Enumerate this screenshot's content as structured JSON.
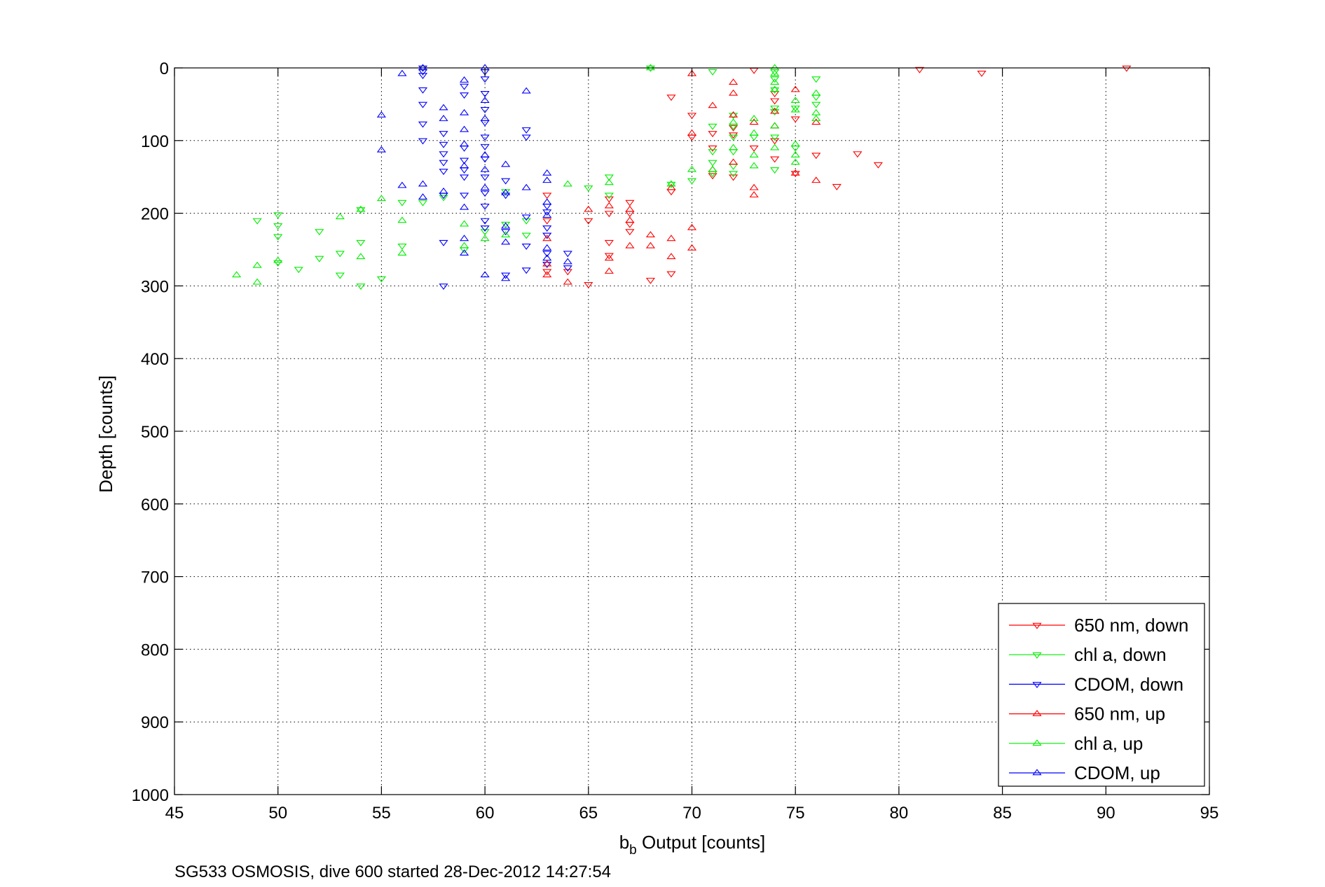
{
  "chart_data": {
    "type": "scatter",
    "title": "",
    "xlabel": "b",
    "xlabel_subscript": "b",
    "xlabel_rest": " Output [counts]",
    "ylabel": "Depth [counts]",
    "xlim": [
      45,
      95
    ],
    "ylim": [
      0,
      1000
    ],
    "y_inverted": true,
    "x_ticks": [
      45,
      50,
      55,
      60,
      65,
      70,
      75,
      80,
      85,
      90,
      95
    ],
    "y_ticks": [
      0,
      100,
      200,
      300,
      400,
      500,
      600,
      700,
      800,
      900,
      1000
    ],
    "grid": true,
    "legend_position": "bottom-right",
    "footer": "SG533 OSMOSIS, dive 600 started 28-Dec-2012 14:27:54",
    "series": [
      {
        "name": "650 nm, down",
        "color": "#ff0000",
        "marker": "triangle-down",
        "points": [
          [
            91,
            0
          ],
          [
            84,
            7
          ],
          [
            81,
            2
          ],
          [
            73,
            3
          ],
          [
            74,
            35
          ],
          [
            74,
            45
          ],
          [
            75,
            70
          ],
          [
            74,
            100
          ],
          [
            73,
            110
          ],
          [
            74,
            125
          ],
          [
            75,
            145
          ],
          [
            76,
            120
          ],
          [
            78,
            118
          ],
          [
            79,
            133
          ],
          [
            77,
            163
          ],
          [
            72,
            82
          ],
          [
            72,
            92
          ],
          [
            72,
            150
          ],
          [
            71,
            90
          ],
          [
            70,
            95
          ],
          [
            70,
            65
          ],
          [
            69,
            40
          ],
          [
            69,
            170
          ],
          [
            69,
            283
          ],
          [
            68,
            292
          ],
          [
            67,
            185
          ],
          [
            67,
            200
          ],
          [
            67,
            215
          ],
          [
            67,
            225
          ],
          [
            66,
            180
          ],
          [
            66,
            200
          ],
          [
            66,
            240
          ],
          [
            66,
            258
          ],
          [
            65,
            210
          ],
          [
            65,
            298
          ],
          [
            64,
            280
          ],
          [
            63,
            175
          ],
          [
            63,
            210
          ],
          [
            63,
            230
          ],
          [
            63,
            280
          ],
          [
            71,
            148
          ],
          [
            71,
            110
          ]
        ]
      },
      {
        "name": "chl a, down",
        "color": "#00ee00",
        "marker": "triangle-down",
        "points": [
          [
            68,
            0
          ],
          [
            71,
            5
          ],
          [
            74,
            5
          ],
          [
            74,
            15
          ],
          [
            74,
            30
          ],
          [
            74,
            55
          ],
          [
            76,
            15
          ],
          [
            76,
            40
          ],
          [
            76,
            50
          ],
          [
            75,
            55
          ],
          [
            75,
            110
          ],
          [
            74,
            60
          ],
          [
            74,
            95
          ],
          [
            74,
            140
          ],
          [
            73,
            95
          ],
          [
            72,
            65
          ],
          [
            72,
            80
          ],
          [
            72,
            95
          ],
          [
            72,
            115
          ],
          [
            72,
            135
          ],
          [
            72,
            145
          ],
          [
            71,
            115
          ],
          [
            71,
            130
          ],
          [
            71,
            145
          ],
          [
            71,
            80
          ],
          [
            70,
            155
          ],
          [
            69,
            160
          ],
          [
            66,
            150
          ],
          [
            66,
            175
          ],
          [
            65,
            165
          ],
          [
            62,
            210
          ],
          [
            62,
            230
          ],
          [
            61,
            170
          ],
          [
            61,
            215
          ],
          [
            60,
            225
          ],
          [
            59,
            250
          ],
          [
            58,
            178
          ],
          [
            57,
            185
          ],
          [
            56,
            185
          ],
          [
            56,
            245
          ],
          [
            55,
            290
          ],
          [
            54,
            195
          ],
          [
            54,
            240
          ],
          [
            54,
            300
          ],
          [
            53,
            255
          ],
          [
            53,
            285
          ],
          [
            52,
            225
          ],
          [
            52,
            262
          ],
          [
            51,
            277
          ],
          [
            50,
            202
          ],
          [
            50,
            217
          ],
          [
            50,
            232
          ],
          [
            50,
            268
          ],
          [
            49,
            210
          ]
        ]
      },
      {
        "name": "CDOM, down",
        "color": "#0000ff",
        "marker": "triangle-down",
        "points": [
          [
            57,
            0
          ],
          [
            57,
            5
          ],
          [
            57,
            10
          ],
          [
            57,
            30
          ],
          [
            57,
            50
          ],
          [
            57,
            77
          ],
          [
            57,
            100
          ],
          [
            59,
            25
          ],
          [
            59,
            37
          ],
          [
            59,
            110
          ],
          [
            59,
            127
          ],
          [
            59,
            140
          ],
          [
            59,
            150
          ],
          [
            58,
            90
          ],
          [
            58,
            105
          ],
          [
            58,
            118
          ],
          [
            58,
            130
          ],
          [
            58,
            142
          ],
          [
            58,
            175
          ],
          [
            58,
            240
          ],
          [
            58,
            300
          ],
          [
            60,
            5
          ],
          [
            60,
            15
          ],
          [
            60,
            35
          ],
          [
            60,
            57
          ],
          [
            60,
            75
          ],
          [
            60,
            95
          ],
          [
            60,
            108
          ],
          [
            60,
            125
          ],
          [
            60,
            150
          ],
          [
            60,
            172
          ],
          [
            60,
            190
          ],
          [
            60,
            210
          ],
          [
            60,
            220
          ],
          [
            59,
            175
          ],
          [
            61,
            155
          ],
          [
            61,
            175
          ],
          [
            61,
            225
          ],
          [
            61,
            285
          ],
          [
            62,
            85
          ],
          [
            62,
            95
          ],
          [
            62,
            205
          ],
          [
            62,
            245
          ],
          [
            62,
            278
          ],
          [
            63,
            230
          ],
          [
            63,
            255
          ],
          [
            63,
            270
          ],
          [
            63,
            190
          ],
          [
            63,
            198
          ],
          [
            63,
            220
          ],
          [
            64,
            255
          ],
          [
            64,
            275
          ]
        ]
      },
      {
        "name": "650 nm, up",
        "color": "#ff0000",
        "marker": "triangle-up",
        "points": [
          [
            70,
            8
          ],
          [
            71,
            52
          ],
          [
            72,
            20
          ],
          [
            72,
            35
          ],
          [
            72,
            65
          ],
          [
            73,
            75
          ],
          [
            73,
            165
          ],
          [
            73,
            175
          ],
          [
            74,
            60
          ],
          [
            74,
            80
          ],
          [
            75,
            30
          ],
          [
            75,
            145
          ],
          [
            76,
            75
          ],
          [
            76,
            155
          ],
          [
            72,
            130
          ],
          [
            71,
            140
          ],
          [
            70,
            90
          ],
          [
            70,
            220
          ],
          [
            70,
            248
          ],
          [
            69,
            235
          ],
          [
            69,
            260
          ],
          [
            69,
            165
          ],
          [
            68,
            230
          ],
          [
            68,
            245
          ],
          [
            67,
            195
          ],
          [
            67,
            210
          ],
          [
            67,
            245
          ],
          [
            66,
            190
          ],
          [
            66,
            262
          ],
          [
            66,
            280
          ],
          [
            65,
            195
          ],
          [
            64,
            295
          ],
          [
            63,
            235
          ],
          [
            63,
            270
          ],
          [
            63,
            285
          ]
        ]
      },
      {
        "name": "chl a, up",
        "color": "#00ee00",
        "marker": "triangle-up",
        "points": [
          [
            68,
            0
          ],
          [
            74,
            0
          ],
          [
            74,
            8
          ],
          [
            74,
            20
          ],
          [
            74,
            30
          ],
          [
            76,
            35
          ],
          [
            76,
            62
          ],
          [
            76,
            70
          ],
          [
            75,
            45
          ],
          [
            75,
            58
          ],
          [
            75,
            105
          ],
          [
            75,
            120
          ],
          [
            75,
            130
          ],
          [
            74,
            80
          ],
          [
            74,
            110
          ],
          [
            73,
            70
          ],
          [
            73,
            90
          ],
          [
            73,
            120
          ],
          [
            73,
            135
          ],
          [
            72,
            75
          ],
          [
            72,
            110
          ],
          [
            71,
            140
          ],
          [
            70,
            140
          ],
          [
            69,
            160
          ],
          [
            66,
            158
          ],
          [
            64,
            160
          ],
          [
            61,
            230
          ],
          [
            60,
            235
          ],
          [
            59,
            215
          ],
          [
            59,
            245
          ],
          [
            56,
            210
          ],
          [
            56,
            255
          ],
          [
            55,
            180
          ],
          [
            54,
            195
          ],
          [
            54,
            260
          ],
          [
            53,
            205
          ],
          [
            50,
            265
          ],
          [
            49,
            272
          ],
          [
            49,
            295
          ],
          [
            48,
            285
          ]
        ]
      },
      {
        "name": "CDOM, up",
        "color": "#0000ff",
        "marker": "triangle-up",
        "points": [
          [
            56,
            8
          ],
          [
            57,
            0
          ],
          [
            55,
            65
          ],
          [
            55,
            113
          ],
          [
            56,
            162
          ],
          [
            57,
            160
          ],
          [
            57,
            178
          ],
          [
            58,
            55
          ],
          [
            58,
            70
          ],
          [
            58,
            170
          ],
          [
            59,
            17
          ],
          [
            59,
            62
          ],
          [
            59,
            85
          ],
          [
            59,
            105
          ],
          [
            59,
            135
          ],
          [
            59,
            192
          ],
          [
            59,
            235
          ],
          [
            59,
            255
          ],
          [
            60,
            0
          ],
          [
            60,
            45
          ],
          [
            60,
            70
          ],
          [
            60,
            120
          ],
          [
            60,
            140
          ],
          [
            60,
            165
          ],
          [
            60,
            285
          ],
          [
            61,
            133
          ],
          [
            61,
            172
          ],
          [
            61,
            218
          ],
          [
            61,
            240
          ],
          [
            61,
            290
          ],
          [
            62,
            32
          ],
          [
            62,
            165
          ],
          [
            63,
            145
          ],
          [
            63,
            155
          ],
          [
            63,
            185
          ],
          [
            63,
            203
          ],
          [
            63,
            248
          ],
          [
            63,
            262
          ],
          [
            64,
            267
          ]
        ]
      }
    ]
  }
}
